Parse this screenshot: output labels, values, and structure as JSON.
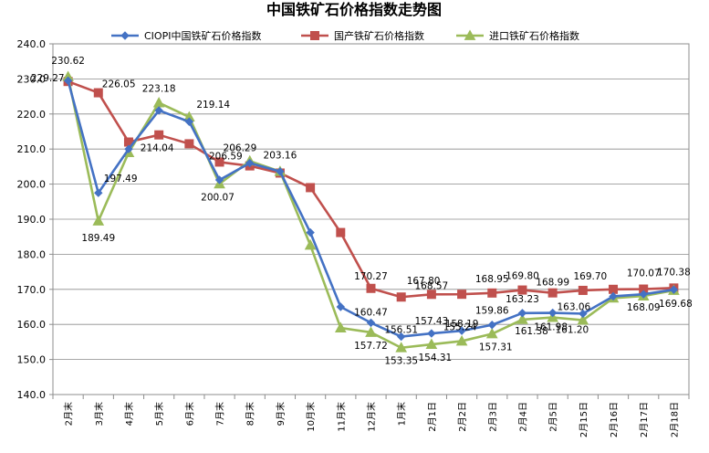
{
  "chart_data": {
    "type": "line",
    "title": "中国铁矿石价格指数走势图",
    "xlabel": "",
    "ylabel": "",
    "ylim": [
      140,
      240
    ],
    "yticks": [
      "140.0",
      "150.0",
      "160.0",
      "170.0",
      "180.0",
      "190.0",
      "200.0",
      "210.0",
      "220.0",
      "230.0",
      "240.0"
    ],
    "categories": [
      "2月末",
      "3月末",
      "4月末",
      "5月末",
      "6月末",
      "7月末",
      "8月末",
      "9月末",
      "10月末",
      "11月末",
      "12月末",
      "1月末",
      "2月1日",
      "2月2日",
      "2月3日",
      "2月4日",
      "2月5日",
      "2月15日",
      "2月16日",
      "2月17日",
      "2月18日"
    ],
    "grid": true,
    "legend_position": "top",
    "series": [
      {
        "name": "CIOPI中国铁矿石价格指数",
        "color": "#4472C4",
        "marker": "diamond",
        "values": [
          229.5,
          197.5,
          210.0,
          221.0,
          217.8,
          201.2,
          206.0,
          203.6,
          186.2,
          165.0,
          160.47,
          156.51,
          157.43,
          158.19,
          159.86,
          163.23,
          163.3,
          163.06,
          168.0,
          168.6,
          169.9
        ],
        "labels": [
          "",
          "197.49",
          "",
          "",
          "",
          "",
          "",
          "",
          "",
          "",
          "160.47",
          "156.51",
          "157.43",
          "158.19",
          "159.86",
          "163.23",
          "",
          "163.06",
          "",
          "",
          ""
        ]
      },
      {
        "name": "国产铁矿石价格指数",
        "color": "#C0504D",
        "marker": "square",
        "values": [
          229.27,
          226.05,
          212.0,
          214.04,
          211.5,
          206.29,
          205.2,
          203.16,
          199.0,
          186.2,
          170.27,
          167.8,
          168.57,
          168.6,
          168.95,
          169.8,
          168.99,
          169.7,
          170.0,
          170.07,
          170.38
        ],
        "labels": [
          "229.27",
          "226.05",
          "",
          "214.04",
          "",
          "206.29",
          "",
          "203.16",
          "",
          "",
          "170.27",
          "167.80",
          "168.57",
          "",
          "168.95",
          "169.80",
          "168.99",
          "169.70",
          "",
          "170.07",
          "170.38"
        ]
      },
      {
        "name": "进口铁矿石价格指数",
        "color": "#9BBB59",
        "marker": "triangle",
        "values": [
          230.62,
          189.49,
          209.0,
          223.18,
          219.14,
          200.07,
          206.59,
          203.6,
          182.6,
          159.0,
          157.72,
          153.35,
          154.31,
          155.24,
          157.31,
          161.38,
          161.98,
          161.2,
          167.5,
          168.09,
          169.68
        ],
        "labels": [
          "230.62",
          "189.49",
          "",
          "223.18",
          "219.14",
          "200.07",
          "206.59",
          "",
          "",
          "",
          "157.72",
          "153.35",
          "154.31",
          "155.24",
          "157.31",
          "161.38",
          "161.98",
          "161.20",
          "",
          "168.09",
          "169.68"
        ]
      }
    ]
  }
}
